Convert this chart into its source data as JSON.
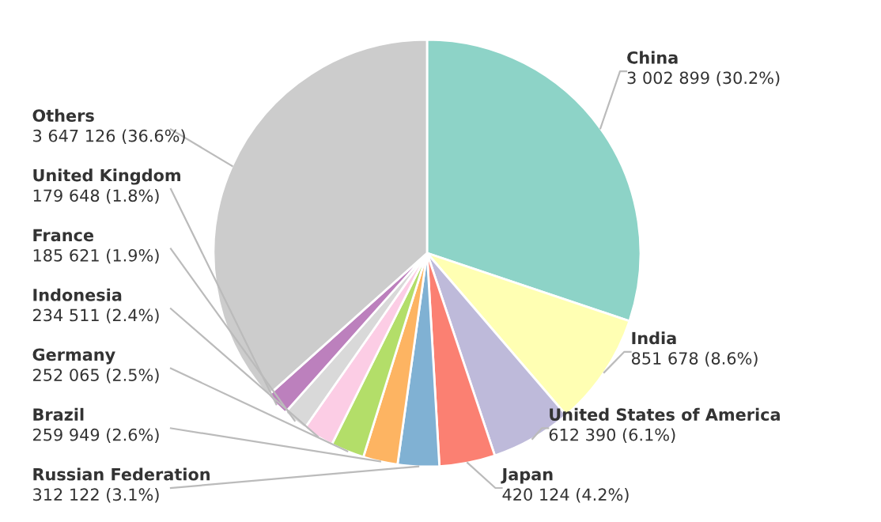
{
  "chart_data": {
    "type": "pie",
    "categories": [
      "China",
      "India",
      "United States of America",
      "Japan",
      "Russian Federation",
      "Brazil",
      "Germany",
      "Indonesia",
      "France",
      "United Kingdom",
      "Others"
    ],
    "values": [
      3002899,
      851678,
      612390,
      420124,
      312122,
      259949,
      252065,
      234511,
      185621,
      179648,
      3647126
    ],
    "value_labels": [
      "3 002 899 (30.2%)",
      "851 678 (8.6%)",
      "612 390 (6.1%)",
      "420 124 (4.2%)",
      "312 122 (3.1%)",
      "259 949 (2.6%)",
      "252 065 (2.5%)",
      "234 511 (2.4%)",
      "185 621 (1.9%)",
      "179 648 (1.8%)",
      "3 647 126 (36.6%)"
    ],
    "colors": [
      "#8dd3c7",
      "#ffffb3",
      "#bebada",
      "#fb8072",
      "#80b1d3",
      "#fdb462",
      "#b3de69",
      "#fccde5",
      "#d9d9d9",
      "#bc80bd",
      "#cccccc"
    ],
    "legend": false
  }
}
